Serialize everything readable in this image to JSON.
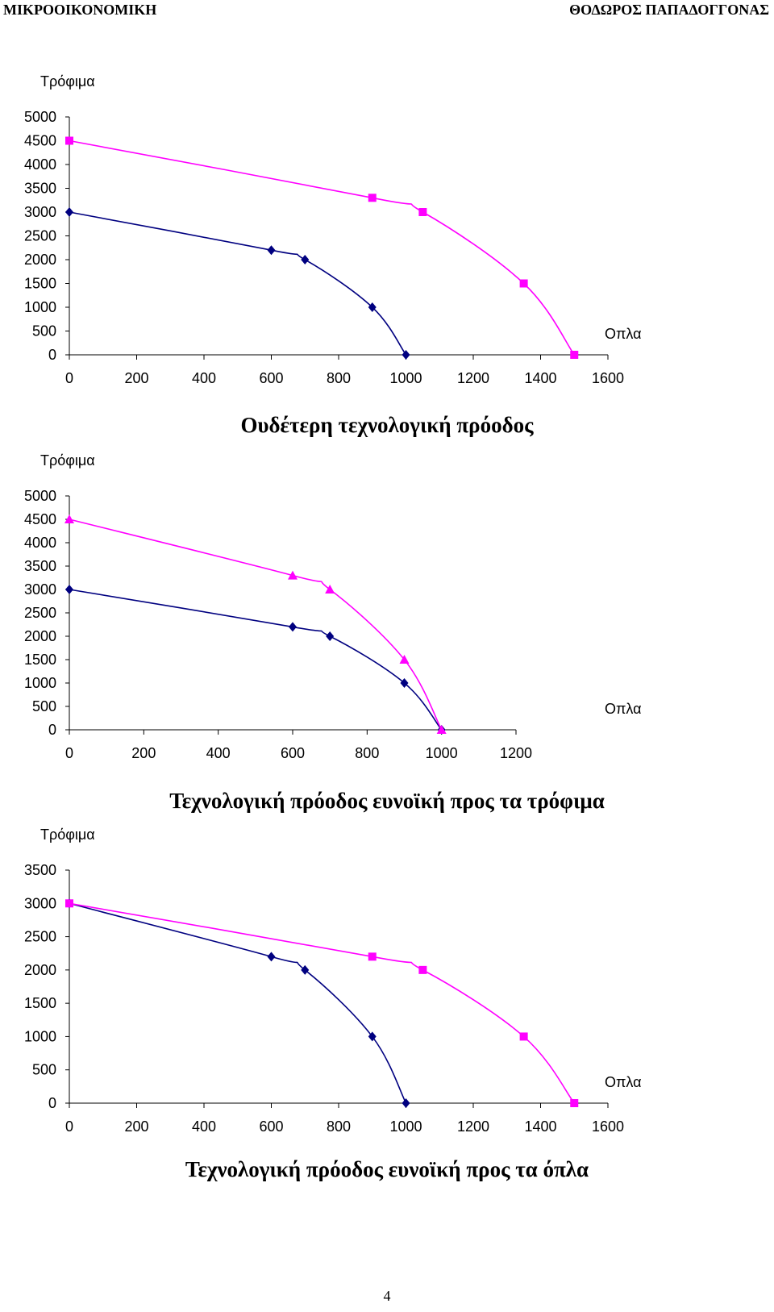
{
  "header": {
    "left": "ΜΙΚΡΟΟΙΚΟΝΟΜΙΚΗ",
    "right": "ΘΟΔΩΡΟΣ ΠΑΠΑΔΟΓΓΟΝΑΣ"
  },
  "page_number": "4",
  "colors": {
    "series_a": "#000080",
    "series_b": "#FF00FF",
    "axis": "#000000"
  },
  "chart_data": [
    {
      "type": "line",
      "title": "",
      "xlabel": "Οπλα",
      "ylabel": "Τρόφιμα",
      "xlim": [
        0,
        1600
      ],
      "ylim": [
        0,
        5000
      ],
      "xticks": [
        0,
        200,
        400,
        600,
        800,
        1000,
        1200,
        1400,
        1600
      ],
      "yticks": [
        0,
        500,
        1000,
        1500,
        2000,
        2500,
        3000,
        3500,
        4000,
        4500,
        5000
      ],
      "grid": false,
      "series": [
        {
          "color": "#000080",
          "marker": "diamond",
          "points": [
            [
              0,
              3000
            ],
            [
              600,
              2200
            ],
            [
              700,
              2000
            ],
            [
              900,
              1000
            ],
            [
              1000,
              0
            ]
          ]
        },
        {
          "color": "#FF00FF",
          "marker": "square",
          "points": [
            [
              0,
              4500
            ],
            [
              900,
              3300
            ],
            [
              1050,
              3000
            ],
            [
              1350,
              1500
            ],
            [
              1500,
              0
            ]
          ]
        }
      ]
    },
    {
      "type": "line",
      "title": "Ουδέτερη τεχνολογική πρόοδος",
      "xlabel": "Οπλα",
      "ylabel": "Τρόφιμα",
      "xlim": [
        0,
        1200
      ],
      "ylim": [
        0,
        5000
      ],
      "xticks": [
        0,
        200,
        400,
        600,
        800,
        1000,
        1200
      ],
      "yticks": [
        0,
        500,
        1000,
        1500,
        2000,
        2500,
        3000,
        3500,
        4000,
        4500,
        5000
      ],
      "grid": false,
      "series": [
        {
          "color": "#000080",
          "marker": "diamond",
          "points": [
            [
              0,
              3000
            ],
            [
              600,
              2200
            ],
            [
              700,
              2000
            ],
            [
              900,
              1000
            ],
            [
              1000,
              0
            ]
          ]
        },
        {
          "color": "#FF00FF",
          "marker": "triangle",
          "points": [
            [
              0,
              4500
            ],
            [
              600,
              3300
            ],
            [
              700,
              3000
            ],
            [
              900,
              1500
            ],
            [
              1000,
              0
            ]
          ]
        }
      ]
    },
    {
      "type": "line",
      "title": "Τεχνολογική πρόοδος ευνοϊκή προς τα τρόφιμα",
      "xlabel": "Οπλα",
      "ylabel": "Τρόφιμα",
      "xlim": [
        0,
        1600
      ],
      "ylim": [
        0,
        3500
      ],
      "xticks": [
        0,
        200,
        400,
        600,
        800,
        1000,
        1200,
        1400,
        1600
      ],
      "yticks": [
        0,
        500,
        1000,
        1500,
        2000,
        2500,
        3000,
        3500
      ],
      "grid": false,
      "series": [
        {
          "color": "#000080",
          "marker": "diamond",
          "points": [
            [
              0,
              3000
            ],
            [
              600,
              2200
            ],
            [
              700,
              2000
            ],
            [
              900,
              1000
            ],
            [
              1000,
              0
            ]
          ]
        },
        {
          "color": "#FF00FF",
          "marker": "square",
          "points": [
            [
              0,
              3000
            ],
            [
              900,
              2200
            ],
            [
              1050,
              2000
            ],
            [
              1350,
              1000
            ],
            [
              1500,
              0
            ]
          ]
        }
      ]
    }
  ],
  "bottom_title": "Τεχνολογική πρόοδος ευνοϊκή προς τα όπλα"
}
